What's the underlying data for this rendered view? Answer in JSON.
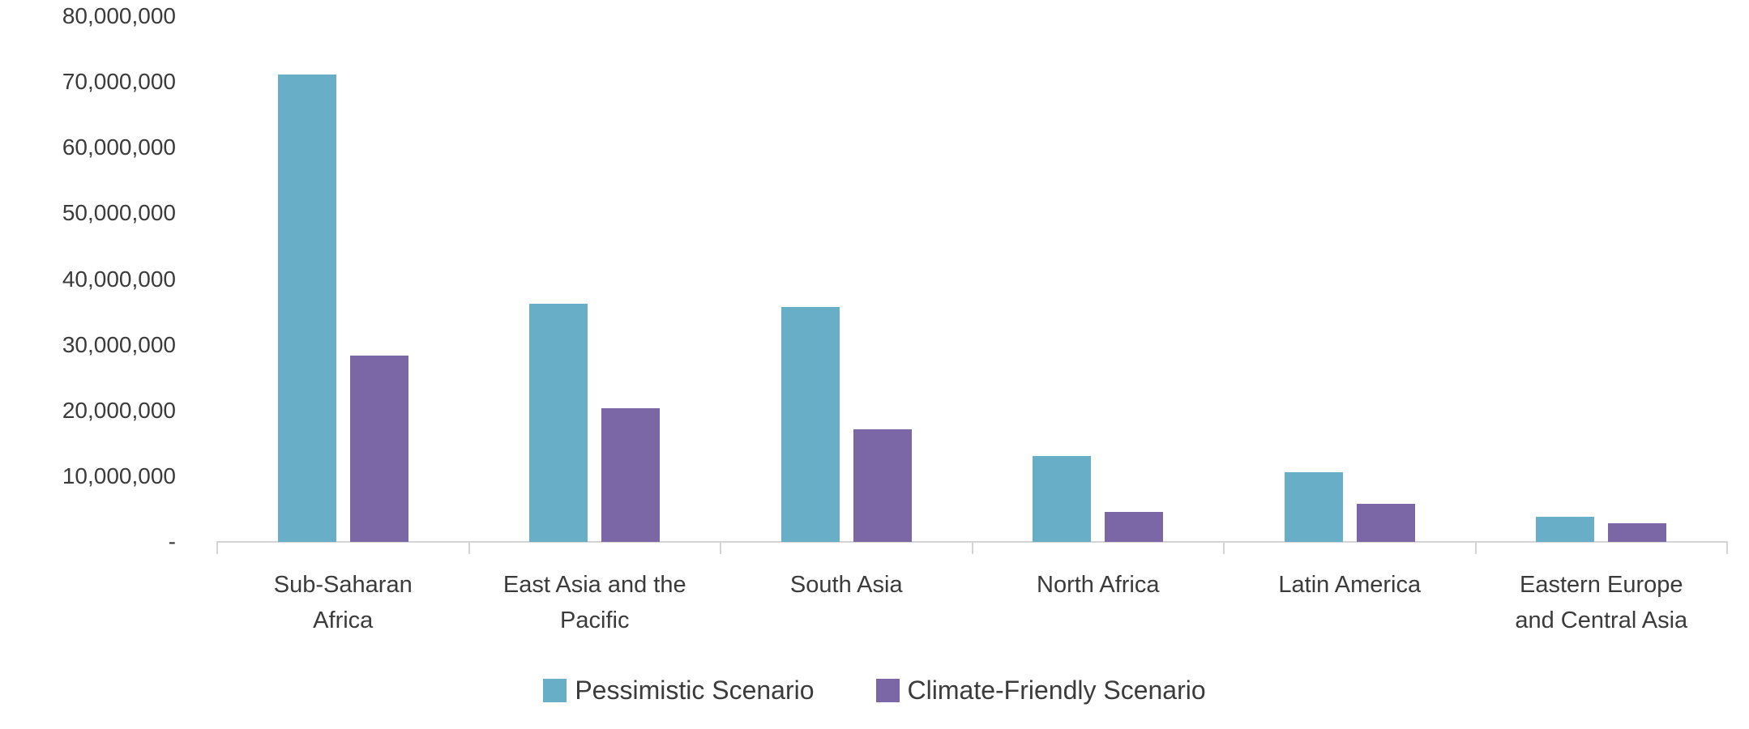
{
  "chart_data": {
    "type": "bar",
    "title": "",
    "categories": [
      "Sub-Saharan Africa",
      "East Asia and the Pacific",
      "South Asia",
      "North Africa",
      "Latin America",
      "Eastern Europe and Central Asia"
    ],
    "category_label_lines": [
      [
        "Sub-Saharan",
        "Africa"
      ],
      [
        "East Asia and the",
        "Pacific"
      ],
      [
        "South Asia"
      ],
      [
        "North Africa"
      ],
      [
        "Latin America"
      ],
      [
        "Eastern Europe",
        "and Central Asia"
      ]
    ],
    "series": [
      {
        "name": "Pessimistic Scenario",
        "color": "#68AEC7",
        "values": [
          71100000,
          36300000,
          35700000,
          13100000,
          10600000,
          3800000
        ]
      },
      {
        "name": "Climate-Friendly Scenario",
        "color": "#7B66A6",
        "values": [
          28300000,
          20400000,
          17100000,
          4500000,
          5800000,
          2800000
        ]
      }
    ],
    "y_axis": {
      "min": 0,
      "max": 80000000,
      "step": 10000000,
      "zero_label": "-",
      "tick_labels": [
        "-",
        "10,000,000",
        "20,000,000",
        "30,000,000",
        "40,000,000",
        "50,000,000",
        "60,000,000",
        "70,000,000",
        "80,000,000"
      ]
    },
    "xlabel": "",
    "ylabel": "",
    "grid": false,
    "legend_position": "bottom"
  },
  "colors": {
    "series_pessimistic": "#68AEC7",
    "series_climate_friendly": "#7B66A6",
    "axis_line": "#d4d4d4",
    "text": "#3b3b3b",
    "background": "#ffffff"
  }
}
